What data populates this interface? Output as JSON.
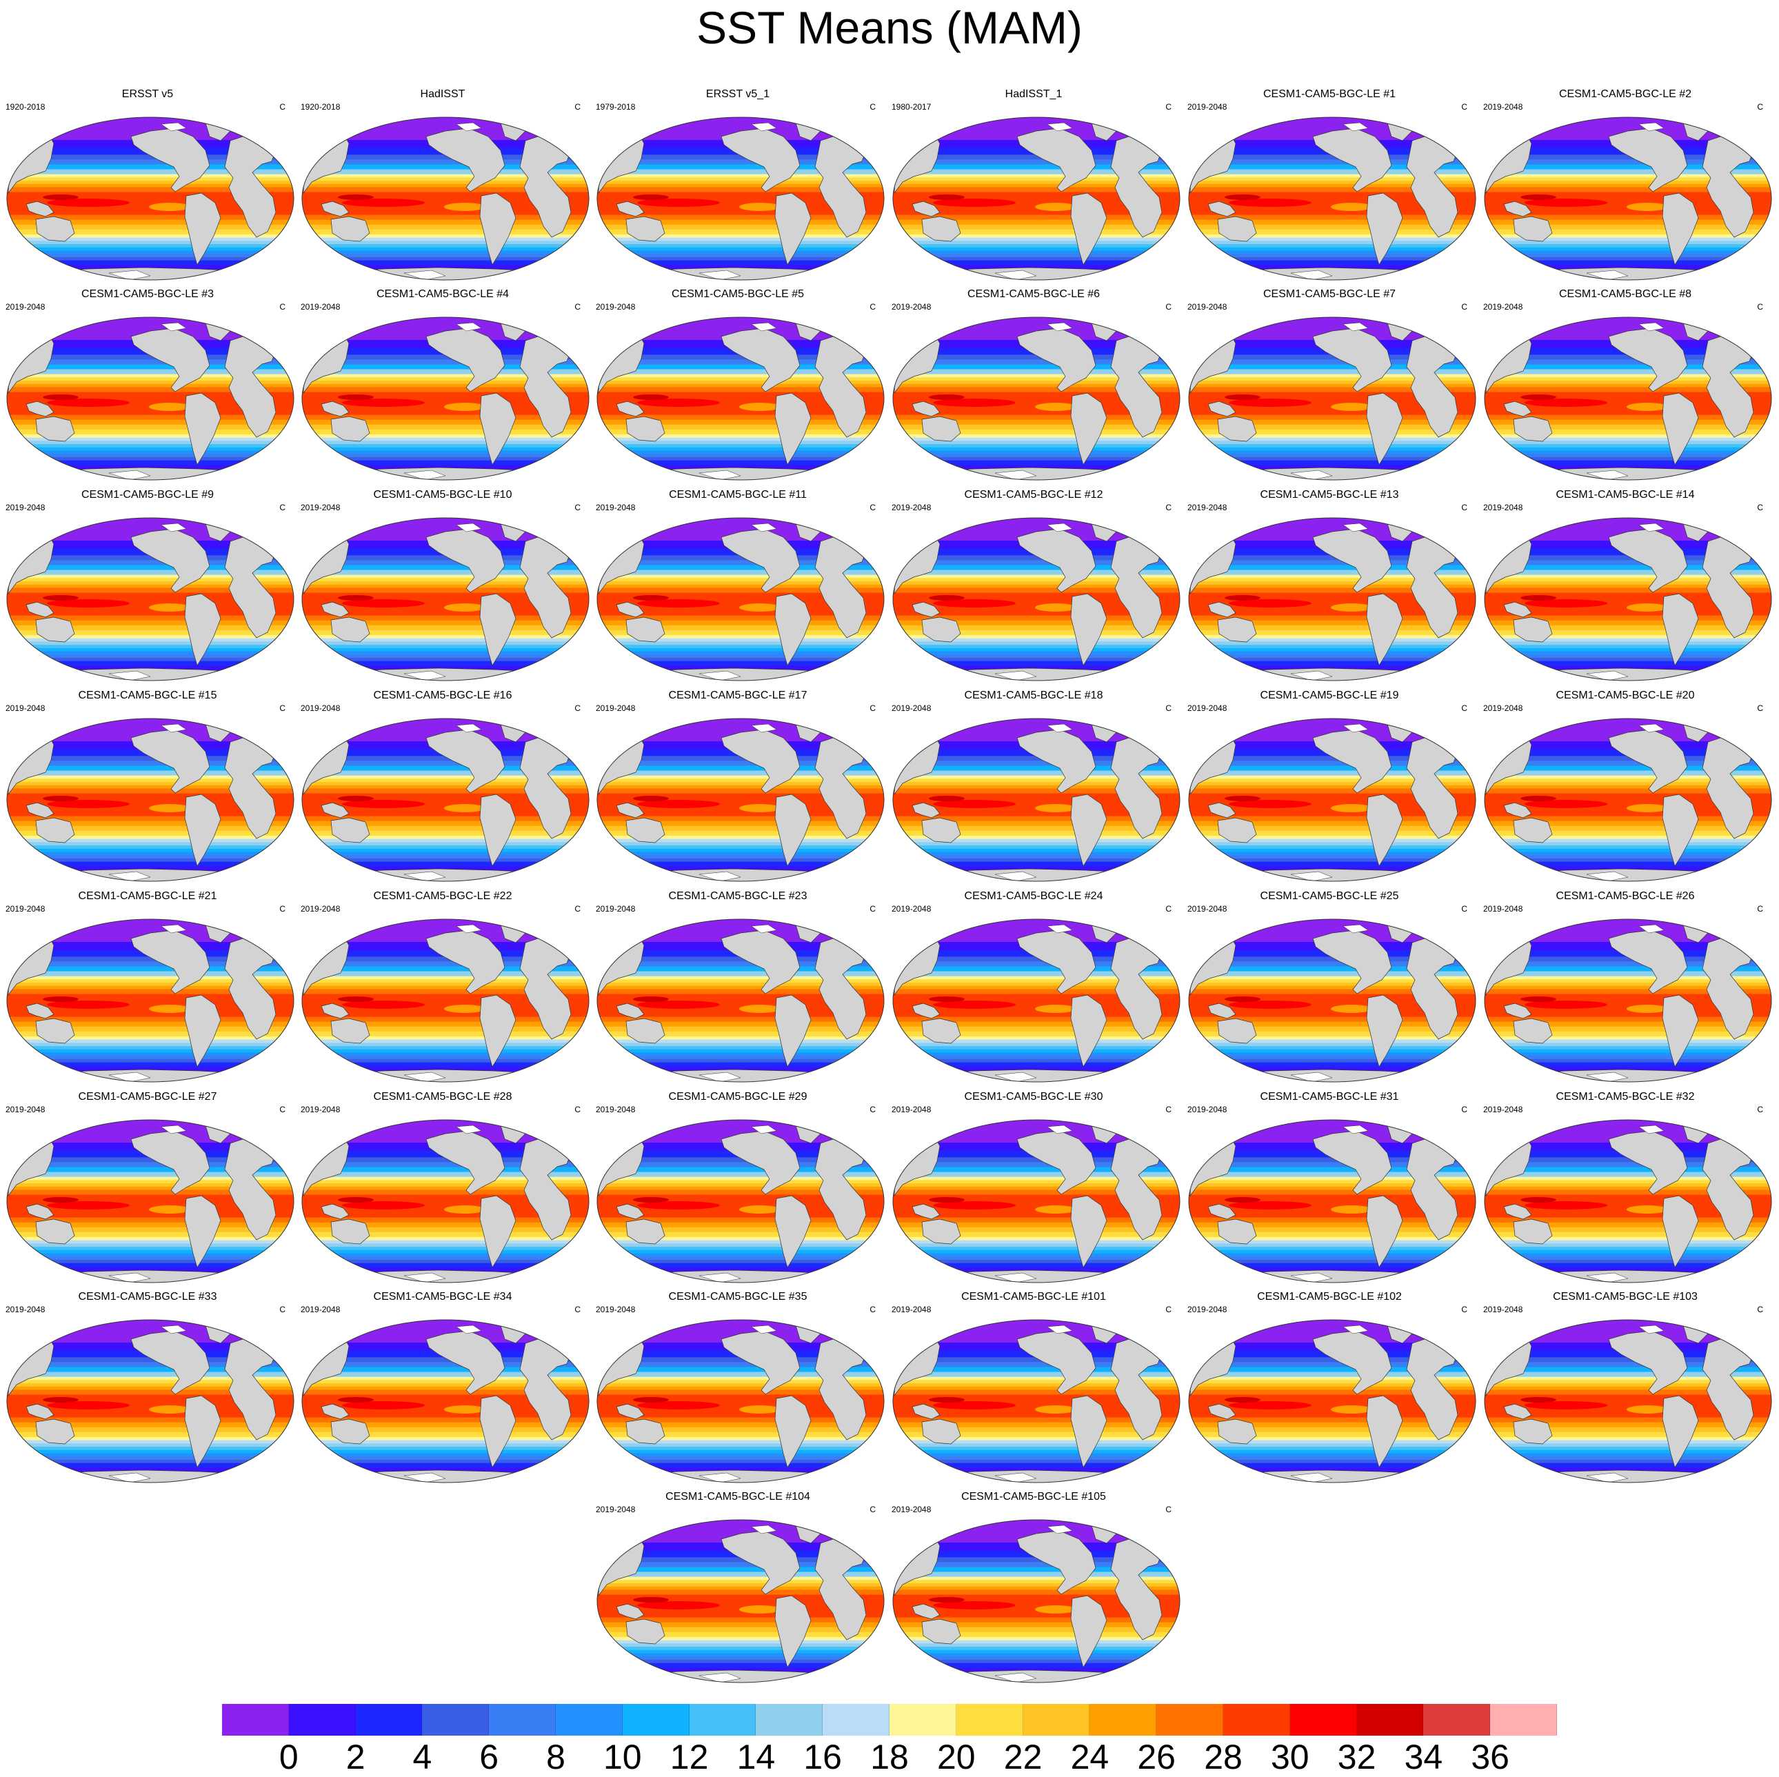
{
  "title": "SST Means (MAM)",
  "units_label": "C",
  "panels": [
    {
      "title": "ERSST v5",
      "period": "1920-2018",
      "units": "C"
    },
    {
      "title": "HadISST",
      "period": "1920-2018",
      "units": "C"
    },
    {
      "title": "ERSST v5_1",
      "period": "1979-2018",
      "units": "C"
    },
    {
      "title": "HadISST_1",
      "period": "1980-2017",
      "units": "C"
    },
    {
      "title": "CESM1-CAM5-BGC-LE #1",
      "period": "2019-2048",
      "units": "C"
    },
    {
      "title": "CESM1-CAM5-BGC-LE #2",
      "period": "2019-2048",
      "units": "C"
    },
    {
      "title": "CESM1-CAM5-BGC-LE #3",
      "period": "2019-2048",
      "units": "C"
    },
    {
      "title": "CESM1-CAM5-BGC-LE #4",
      "period": "2019-2048",
      "units": "C"
    },
    {
      "title": "CESM1-CAM5-BGC-LE #5",
      "period": "2019-2048",
      "units": "C"
    },
    {
      "title": "CESM1-CAM5-BGC-LE #6",
      "period": "2019-2048",
      "units": "C"
    },
    {
      "title": "CESM1-CAM5-BGC-LE #7",
      "period": "2019-2048",
      "units": "C"
    },
    {
      "title": "CESM1-CAM5-BGC-LE #8",
      "period": "2019-2048",
      "units": "C"
    },
    {
      "title": "CESM1-CAM5-BGC-LE #9",
      "period": "2019-2048",
      "units": "C"
    },
    {
      "title": "CESM1-CAM5-BGC-LE #10",
      "period": "2019-2048",
      "units": "C"
    },
    {
      "title": "CESM1-CAM5-BGC-LE #11",
      "period": "2019-2048",
      "units": "C"
    },
    {
      "title": "CESM1-CAM5-BGC-LE #12",
      "period": "2019-2048",
      "units": "C"
    },
    {
      "title": "CESM1-CAM5-BGC-LE #13",
      "period": "2019-2048",
      "units": "C"
    },
    {
      "title": "CESM1-CAM5-BGC-LE #14",
      "period": "2019-2048",
      "units": "C"
    },
    {
      "title": "CESM1-CAM5-BGC-LE #15",
      "period": "2019-2048",
      "units": "C"
    },
    {
      "title": "CESM1-CAM5-BGC-LE #16",
      "period": "2019-2048",
      "units": "C"
    },
    {
      "title": "CESM1-CAM5-BGC-LE #17",
      "period": "2019-2048",
      "units": "C"
    },
    {
      "title": "CESM1-CAM5-BGC-LE #18",
      "period": "2019-2048",
      "units": "C"
    },
    {
      "title": "CESM1-CAM5-BGC-LE #19",
      "period": "2019-2048",
      "units": "C"
    },
    {
      "title": "CESM1-CAM5-BGC-LE #20",
      "period": "2019-2048",
      "units": "C"
    },
    {
      "title": "CESM1-CAM5-BGC-LE #21",
      "period": "2019-2048",
      "units": "C"
    },
    {
      "title": "CESM1-CAM5-BGC-LE #22",
      "period": "2019-2048",
      "units": "C"
    },
    {
      "title": "CESM1-CAM5-BGC-LE #23",
      "period": "2019-2048",
      "units": "C"
    },
    {
      "title": "CESM1-CAM5-BGC-LE #24",
      "period": "2019-2048",
      "units": "C"
    },
    {
      "title": "CESM1-CAM5-BGC-LE #25",
      "period": "2019-2048",
      "units": "C"
    },
    {
      "title": "CESM1-CAM5-BGC-LE #26",
      "period": "2019-2048",
      "units": "C"
    },
    {
      "title": "CESM1-CAM5-BGC-LE #27",
      "period": "2019-2048",
      "units": "C"
    },
    {
      "title": "CESM1-CAM5-BGC-LE #28",
      "period": "2019-2048",
      "units": "C"
    },
    {
      "title": "CESM1-CAM5-BGC-LE #29",
      "period": "2019-2048",
      "units": "C"
    },
    {
      "title": "CESM1-CAM5-BGC-LE #30",
      "period": "2019-2048",
      "units": "C"
    },
    {
      "title": "CESM1-CAM5-BGC-LE #31",
      "period": "2019-2048",
      "units": "C"
    },
    {
      "title": "CESM1-CAM5-BGC-LE #32",
      "period": "2019-2048",
      "units": "C"
    },
    {
      "title": "CESM1-CAM5-BGC-LE #33",
      "period": "2019-2048",
      "units": "C"
    },
    {
      "title": "CESM1-CAM5-BGC-LE #34",
      "period": "2019-2048",
      "units": "C"
    },
    {
      "title": "CESM1-CAM5-BGC-LE #35",
      "period": "2019-2048",
      "units": "C"
    },
    {
      "title": "CESM1-CAM5-BGC-LE #101",
      "period": "2019-2048",
      "units": "C"
    },
    {
      "title": "CESM1-CAM5-BGC-LE #102",
      "period": "2019-2048",
      "units": "C"
    },
    {
      "title": "CESM1-CAM5-BGC-LE #103",
      "period": "2019-2048",
      "units": "C"
    },
    {
      "title": "CESM1-CAM5-BGC-LE #104",
      "period": "2019-2048",
      "units": "C"
    },
    {
      "title": "CESM1-CAM5-BGC-LE #105",
      "period": "2019-2048",
      "units": "C"
    }
  ],
  "colorbar": {
    "tick_labels": [
      "0",
      "2",
      "4",
      "6",
      "8",
      "10",
      "12",
      "14",
      "16",
      "18",
      "20",
      "22",
      "24",
      "26",
      "28",
      "30",
      "32",
      "34",
      "36"
    ],
    "colors": [
      "#8b22f0",
      "#3a10ff",
      "#1c28ff",
      "#3a5ee6",
      "#3a7ef6",
      "#2290ff",
      "#0fb2ff",
      "#46c0f8",
      "#90cfee",
      "#b9ddf6",
      "#fef596",
      "#fedd3e",
      "#ffc323",
      "#ff9f00",
      "#ff7200",
      "#ff3c00",
      "#ff0000",
      "#d40000",
      "#dc3c3c",
      "#ffafaf"
    ]
  },
  "map_style": {
    "land_color": "#d3d3d3",
    "sea_ice_color": "#ffffff",
    "outline_color": "#333333"
  }
}
